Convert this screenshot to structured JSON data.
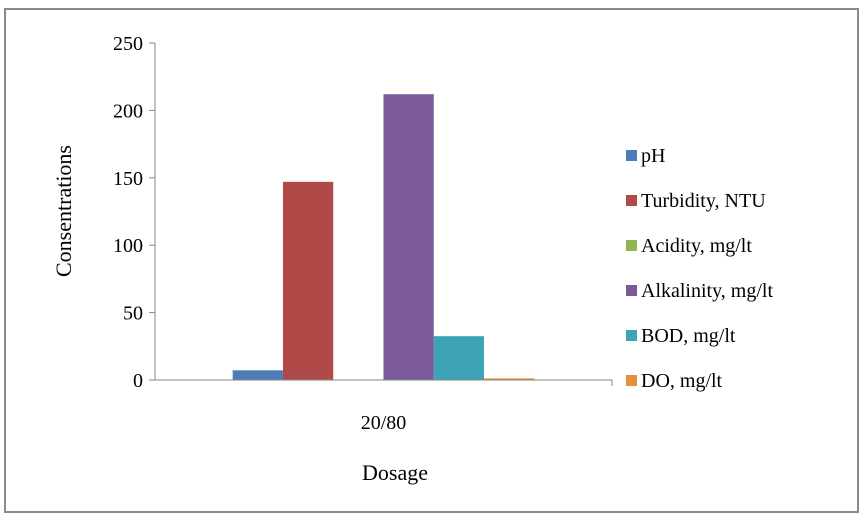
{
  "chart_data": {
    "type": "bar",
    "categories": [
      "20/80"
    ],
    "series": [
      {
        "name": "pH",
        "values": [
          7.2
        ],
        "color": "#4a7dba"
      },
      {
        "name": "Turbidity, NTU",
        "values": [
          147
        ],
        "color": "#b04a48"
      },
      {
        "name": "Acidity, mg/lt",
        "values": [
          0
        ],
        "color": "#93b452"
      },
      {
        "name": "Alkalinity, mg/lt",
        "values": [
          212
        ],
        "color": "#7a5a9a"
      },
      {
        "name": "BOD, mg/lt",
        "values": [
          32.5
        ],
        "color": "#3fa3b8"
      },
      {
        "name": "DO, mg/lt",
        "values": [
          1.2
        ],
        "color": "#e88f3a"
      }
    ],
    "title": "",
    "xlabel": "Dosage",
    "ylabel": "Consentrations",
    "ylim": [
      0,
      250
    ],
    "yticks": [
      0,
      50,
      100,
      150,
      200,
      250
    ],
    "grid": false,
    "legend": "right"
  }
}
